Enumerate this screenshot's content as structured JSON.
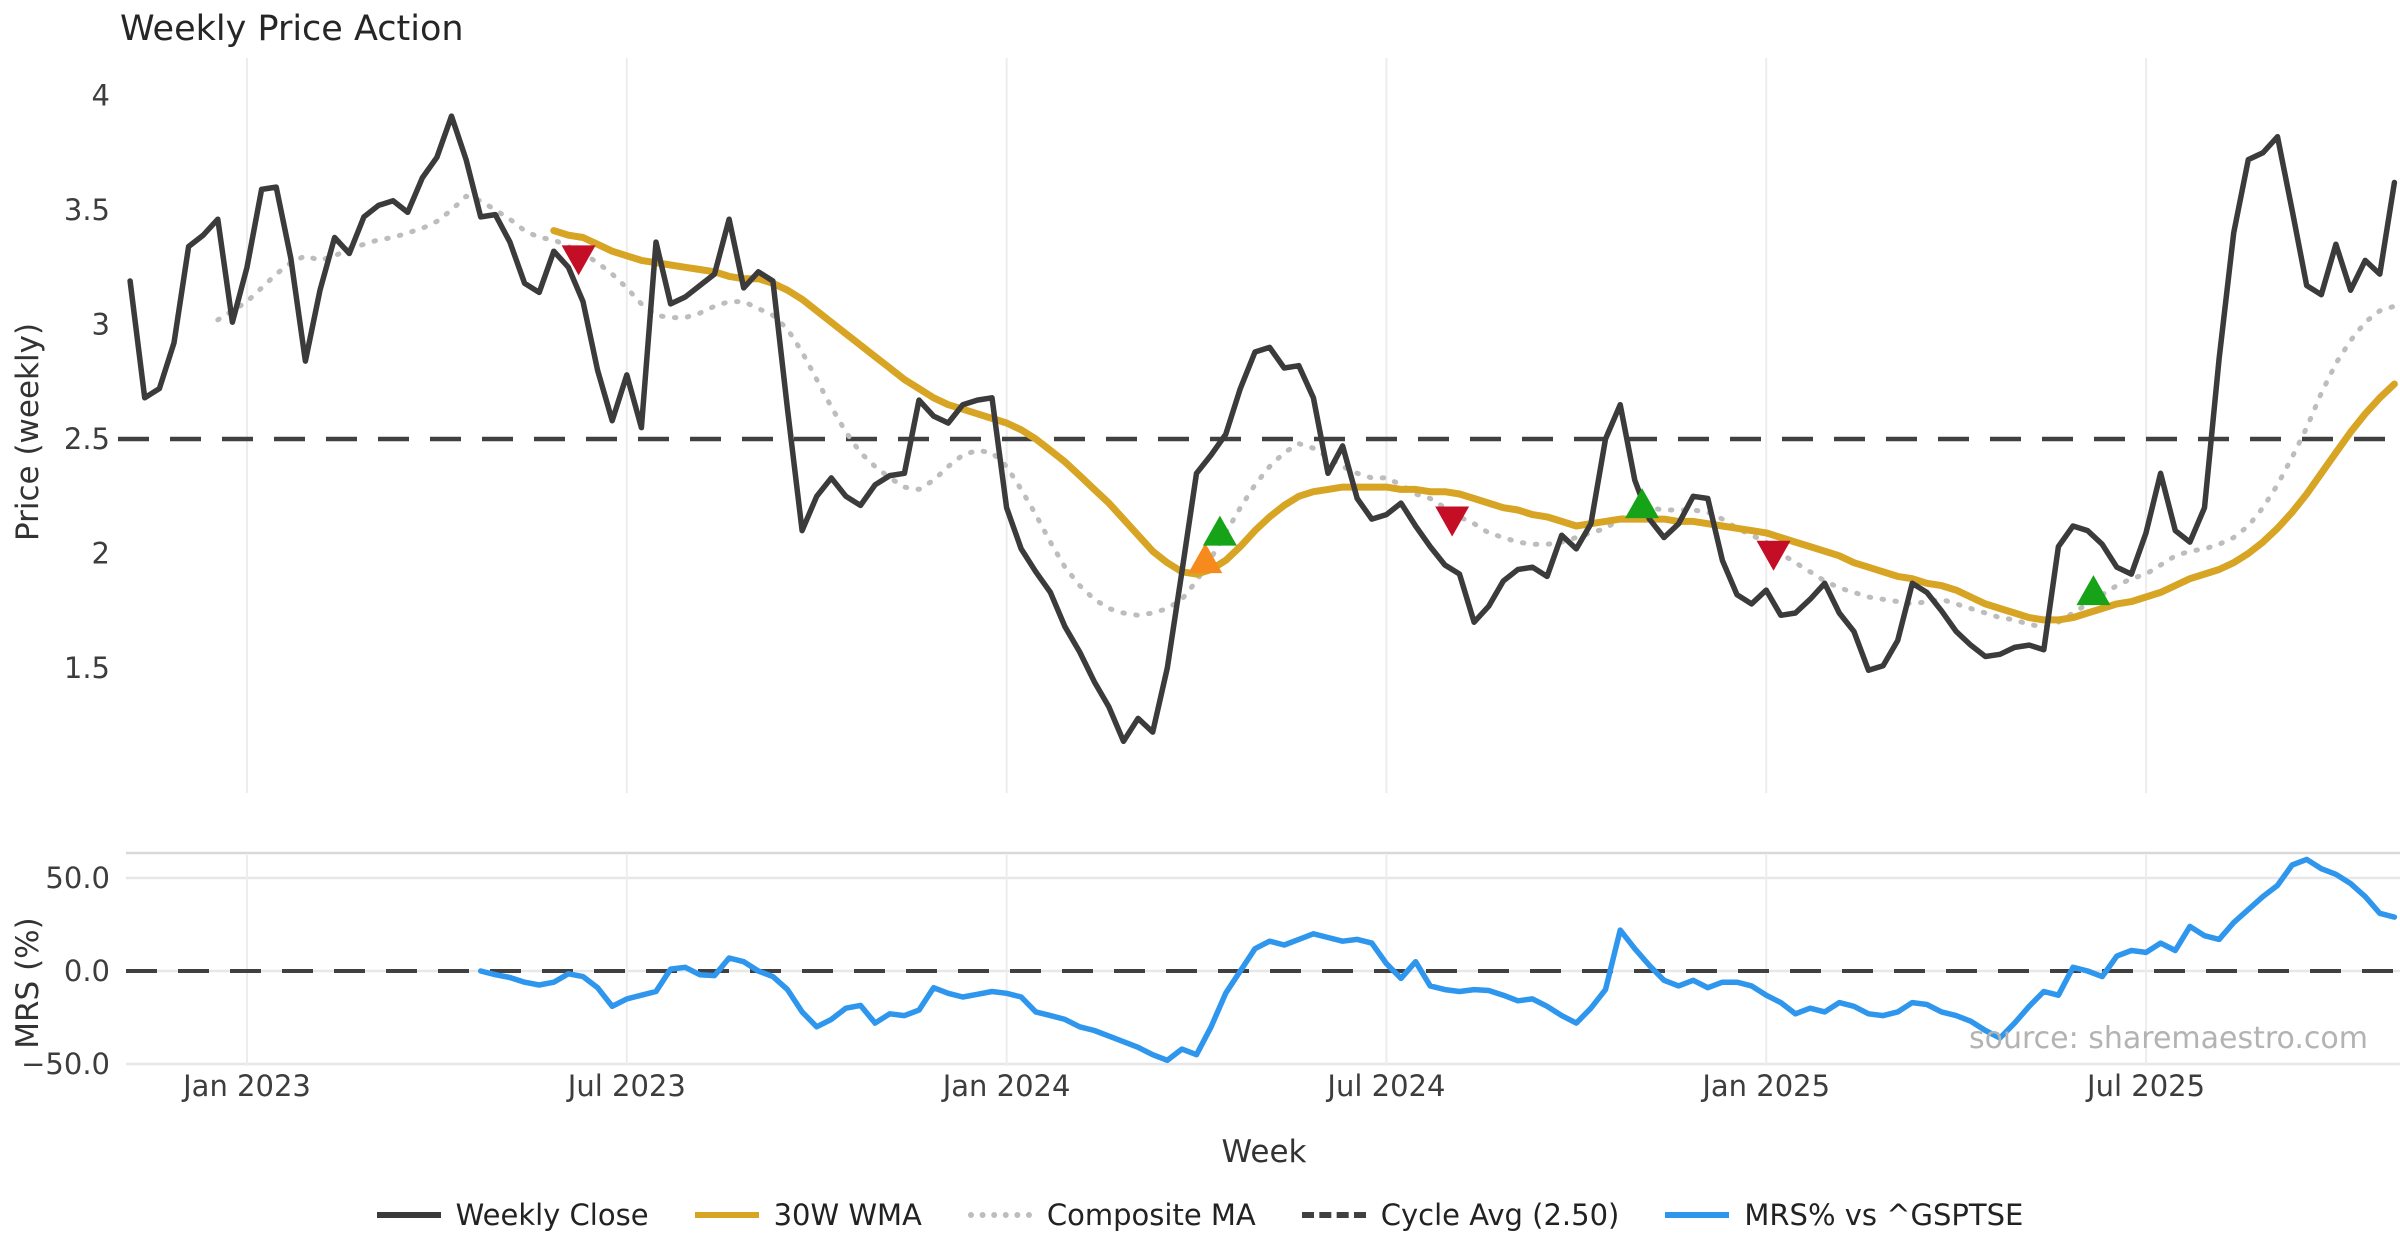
{
  "title": "Weekly Price Action",
  "xlabel": "Week",
  "source": "source: sharemaestro.com",
  "price_panel": {
    "ylabel": "Price (weekly)",
    "yticks": [
      {
        "label": "4",
        "value": 4
      },
      {
        "label": "3.5",
        "value": 3.5
      },
      {
        "label": "3",
        "value": 3
      },
      {
        "label": "2.5",
        "value": 2.5
      },
      {
        "label": "2",
        "value": 2
      },
      {
        "label": "1.5",
        "value": 1.5
      }
    ],
    "cycle_avg_value": 2.5
  },
  "mrs_panel": {
    "ylabel": "MRS (%)",
    "yticks": [
      {
        "label": "50.0",
        "value": 50
      },
      {
        "label": "0.0",
        "value": 0
      },
      {
        "label": "−50.0",
        "value": -50
      }
    ]
  },
  "x_ticks": [
    {
      "label": "Jan 2023",
      "week": 8
    },
    {
      "label": "Jul 2023",
      "week": 34
    },
    {
      "label": "Jan 2024",
      "week": 60
    },
    {
      "label": "Jul 2024",
      "week": 86
    },
    {
      "label": "Jan 2025",
      "week": 112
    },
    {
      "label": "Jul 2025",
      "week": 138
    }
  ],
  "legend": [
    {
      "label": "Weekly Close",
      "style": "solid",
      "color": "#3b3b3b"
    },
    {
      "label": "30W WMA",
      "style": "solid",
      "color": "#d7a423"
    },
    {
      "label": "Composite MA",
      "style": "dotted",
      "color": "#bdbdbd"
    },
    {
      "label": "Cycle Avg (2.50)",
      "style": "dashed",
      "color": "#404040"
    },
    {
      "label": "MRS% vs ^GSPTSE",
      "style": "solid",
      "color": "#2f96ee"
    }
  ],
  "colors": {
    "close": "#3b3b3b",
    "wma": "#d7a423",
    "composite": "#bdbdbd",
    "cycle": "#404040",
    "mrs": "#2f96ee",
    "buy": "#17a317",
    "sell": "#c40e26",
    "pending": "#f68a1d",
    "grid_v": "#ededed",
    "grid_h": "#e7e7e7",
    "spine": "#d9d9d9"
  },
  "chart_data": [
    {
      "type": "line",
      "panel": "price",
      "title": "Weekly Price Action",
      "xlabel": "Week",
      "ylabel": "Price (weekly)",
      "ylim": [
        0.95,
        4.17
      ],
      "x_unit": "week_index, week 8 = Jan 2023, 26 weeks per half year",
      "grid": "vertical_only",
      "cycle_avg": 2.5,
      "series": [
        {
          "name": "Weekly Close",
          "color": "#3b3b3b",
          "style": "solid",
          "start_week": 0,
          "values": [
            3.19,
            2.68,
            2.72,
            2.92,
            3.34,
            3.39,
            3.46,
            3.01,
            3.25,
            3.59,
            3.6,
            3.29,
            2.84,
            3.15,
            3.38,
            3.31,
            3.47,
            3.52,
            3.54,
            3.49,
            3.64,
            3.73,
            3.91,
            3.72,
            3.47,
            3.48,
            3.36,
            3.18,
            3.14,
            3.32,
            3.25,
            3.1,
            2.8,
            2.58,
            2.78,
            2.55,
            3.36,
            3.09,
            3.12,
            3.17,
            3.22,
            3.46,
            3.16,
            3.23,
            3.19,
            2.63,
            2.1,
            2.25,
            2.33,
            2.25,
            2.21,
            2.3,
            2.34,
            2.35,
            2.67,
            2.6,
            2.57,
            2.65,
            2.67,
            2.68,
            2.2,
            2.02,
            1.92,
            1.83,
            1.68,
            1.57,
            1.44,
            1.33,
            1.18,
            1.28,
            1.22,
            1.5,
            1.92,
            2.35,
            2.43,
            2.52,
            2.72,
            2.88,
            2.9,
            2.81,
            2.82,
            2.68,
            2.35,
            2.47,
            2.24,
            2.15,
            2.17,
            2.22,
            2.12,
            2.03,
            1.95,
            1.91,
            1.7,
            1.77,
            1.88,
            1.93,
            1.94,
            1.9,
            2.08,
            2.02,
            2.13,
            2.5,
            2.65,
            2.32,
            2.15,
            2.07,
            2.13,
            2.25,
            2.24,
            1.97,
            1.82,
            1.78,
            1.84,
            1.73,
            1.74,
            1.8,
            1.87,
            1.74,
            1.66,
            1.49,
            1.51,
            1.62,
            1.87,
            1.83,
            1.75,
            1.66,
            1.6,
            1.55,
            1.56,
            1.59,
            1.6,
            1.58,
            2.03,
            2.12,
            2.1,
            2.04,
            1.94,
            1.91,
            2.09,
            2.35,
            2.1,
            2.05,
            2.2,
            2.85,
            3.4,
            3.72,
            3.75,
            3.82,
            3.5,
            3.17,
            3.13,
            3.35,
            3.15,
            3.28,
            3.22,
            3.62
          ]
        },
        {
          "name": "30W WMA",
          "color": "#d7a423",
          "style": "solid",
          "start_week": 29,
          "values": [
            3.41,
            3.39,
            3.38,
            3.35,
            3.32,
            3.3,
            3.28,
            3.27,
            3.26,
            3.25,
            3.24,
            3.23,
            3.21,
            3.2,
            3.2,
            3.18,
            3.15,
            3.11,
            3.06,
            3.01,
            2.96,
            2.91,
            2.86,
            2.81,
            2.76,
            2.72,
            2.68,
            2.65,
            2.63,
            2.61,
            2.59,
            2.57,
            2.54,
            2.5,
            2.45,
            2.4,
            2.34,
            2.28,
            2.22,
            2.15,
            2.08,
            2.01,
            1.96,
            1.92,
            1.91,
            1.93,
            1.97,
            2.03,
            2.1,
            2.16,
            2.21,
            2.25,
            2.27,
            2.28,
            2.29,
            2.29,
            2.29,
            2.29,
            2.28,
            2.28,
            2.27,
            2.27,
            2.26,
            2.24,
            2.22,
            2.2,
            2.19,
            2.17,
            2.16,
            2.14,
            2.12,
            2.13,
            2.14,
            2.15,
            2.15,
            2.15,
            2.15,
            2.14,
            2.14,
            2.13,
            2.12,
            2.11,
            2.1,
            2.09,
            2.07,
            2.05,
            2.03,
            2.01,
            1.99,
            1.96,
            1.94,
            1.92,
            1.9,
            1.89,
            1.87,
            1.86,
            1.84,
            1.81,
            1.78,
            1.76,
            1.74,
            1.72,
            1.71,
            1.71,
            1.72,
            1.74,
            1.76,
            1.78,
            1.79,
            1.81,
            1.83,
            1.86,
            1.89,
            1.91,
            1.93,
            1.96,
            2.0,
            2.05,
            2.11,
            2.18,
            2.26,
            2.35,
            2.44,
            2.53,
            2.61,
            2.68,
            2.74
          ]
        },
        {
          "name": "Composite MA",
          "color": "#bdbdbd",
          "style": "dotted",
          "start_week": 6,
          "values": [
            3.02,
            3.06,
            3.1,
            3.16,
            3.22,
            3.27,
            3.3,
            3.28,
            3.3,
            3.33,
            3.35,
            3.37,
            3.38,
            3.4,
            3.42,
            3.45,
            3.5,
            3.56,
            3.54,
            3.5,
            3.46,
            3.41,
            3.38,
            3.37,
            3.34,
            3.31,
            3.27,
            3.22,
            3.16,
            3.09,
            3.04,
            3.03,
            3.03,
            3.05,
            3.08,
            3.1,
            3.1,
            3.07,
            3.04,
            2.98,
            2.88,
            2.76,
            2.64,
            2.53,
            2.44,
            2.38,
            2.33,
            2.29,
            2.28,
            2.32,
            2.38,
            2.43,
            2.45,
            2.44,
            2.38,
            2.28,
            2.17,
            2.05,
            1.94,
            1.86,
            1.8,
            1.76,
            1.74,
            1.73,
            1.74,
            1.76,
            1.8,
            1.88,
            1.98,
            2.09,
            2.2,
            2.3,
            2.38,
            2.44,
            2.48,
            2.46,
            2.42,
            2.38,
            2.35,
            2.33,
            2.33,
            2.3,
            2.26,
            2.24,
            2.2,
            2.16,
            2.13,
            2.09,
            2.07,
            2.05,
            2.04,
            2.04,
            2.05,
            2.07,
            2.09,
            2.11,
            2.15,
            2.19,
            2.2,
            2.19,
            2.19,
            2.19,
            2.18,
            2.15,
            2.11,
            2.08,
            2.05,
            2.0,
            1.96,
            1.92,
            1.88,
            1.85,
            1.83,
            1.81,
            1.8,
            1.79,
            1.78,
            1.79,
            1.8,
            1.78,
            1.76,
            1.74,
            1.72,
            1.71,
            1.69,
            1.68,
            1.7,
            1.74,
            1.78,
            1.82,
            1.86,
            1.89,
            1.91,
            1.95,
            1.99,
            2.01,
            2.02,
            2.04,
            2.07,
            2.12,
            2.2,
            2.3,
            2.42,
            2.55,
            2.7,
            2.83,
            2.93,
            3.01,
            3.06,
            3.08
          ]
        }
      ],
      "markers": [
        {
          "type": "sell",
          "shape": "triangle-down",
          "color": "#c40e26",
          "week": 30.7,
          "price": 3.28
        },
        {
          "type": "pending",
          "shape": "triangle-up",
          "color": "#f68a1d",
          "week": 73.6,
          "price": 1.98
        },
        {
          "type": "buy",
          "shape": "triangle-up",
          "color": "#17a317",
          "week": 74.6,
          "price": 2.1
        },
        {
          "type": "sell",
          "shape": "triangle-down",
          "color": "#c40e26",
          "week": 90.5,
          "price": 2.14
        },
        {
          "type": "buy",
          "shape": "triangle-up",
          "color": "#17a317",
          "week": 103.5,
          "price": 2.22
        },
        {
          "type": "sell",
          "shape": "triangle-down",
          "color": "#c40e26",
          "week": 112.5,
          "price": 1.99
        },
        {
          "type": "buy",
          "shape": "triangle-up",
          "color": "#17a317",
          "week": 134.4,
          "price": 1.84
        }
      ]
    },
    {
      "type": "line",
      "panel": "mrs",
      "ylabel": "MRS (%)",
      "ylim": [
        -58,
        63
      ],
      "zero_line": 0,
      "grid": "horizontal_and_vertical",
      "series": [
        {
          "name": "MRS% vs ^GSPTSE",
          "color": "#2f96ee",
          "style": "solid",
          "start_week": 24,
          "values": [
            0,
            -2,
            -3.5,
            -6,
            -7.5,
            -6,
            -1.5,
            -3,
            -9,
            -19,
            -15,
            -13,
            -11,
            1,
            2,
            -2,
            -2.5,
            7,
            5,
            0,
            -3,
            -10,
            -22,
            -30,
            -26,
            -20,
            -18.5,
            -28,
            -23,
            -24,
            -21,
            -9,
            -12,
            -14,
            -12.5,
            -11,
            -12,
            -14,
            -22,
            -24,
            -26,
            -30,
            -32,
            -35,
            -38,
            -41,
            -45,
            -48,
            -42,
            -45,
            -30,
            -12,
            0,
            12,
            16,
            14,
            17,
            20,
            18,
            16,
            17,
            15,
            4,
            -4,
            5,
            -8,
            -10,
            -11,
            -10,
            -10.5,
            -13,
            -16,
            -15,
            -19,
            -24,
            -28,
            -20,
            -10,
            22,
            12,
            3,
            -5,
            -8,
            -5,
            -9,
            -6,
            -6,
            -8,
            -13,
            -17,
            -23,
            -20,
            -22,
            -17,
            -19,
            -23,
            -24,
            -22,
            -17,
            -18,
            -22,
            -24,
            -27,
            -32,
            -36,
            -28,
            -19,
            -11,
            -13,
            2,
            0,
            -3,
            8,
            11,
            10,
            15,
            11,
            24,
            19,
            17,
            26,
            33,
            40,
            46,
            57,
            60,
            55,
            52,
            47,
            40,
            31,
            29
          ]
        }
      ]
    }
  ]
}
